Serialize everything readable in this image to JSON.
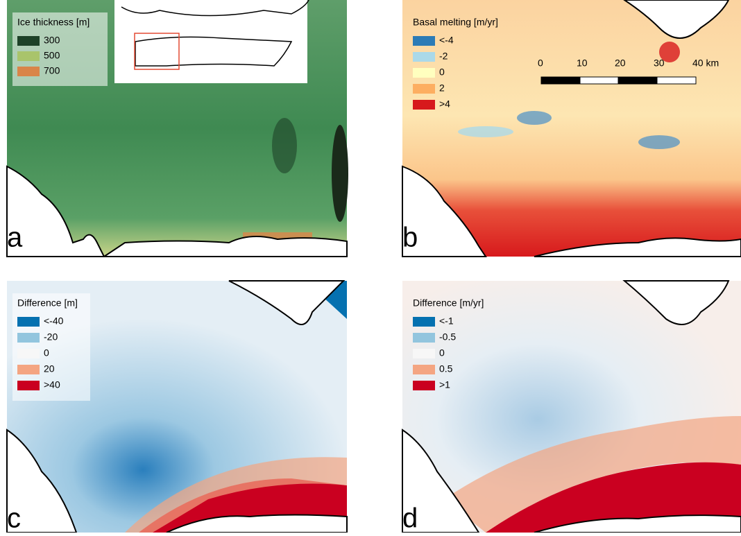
{
  "panels": [
    {
      "letter": "a",
      "legend": {
        "title": "Ice thickness [m]",
        "items": [
          {
            "label": "300",
            "color": "#1e4228"
          },
          {
            "label": "500",
            "color": "#a9c46b"
          },
          {
            "label": "700",
            "color": "#d98549"
          }
        ]
      }
    },
    {
      "letter": "b",
      "legend": {
        "title": "Basal melting [m/yr]",
        "items": [
          {
            "label": "<-4",
            "color": "#2c7bb6"
          },
          {
            "label": "-2",
            "color": "#abd9e9"
          },
          {
            "label": "0",
            "color": "#ffffbf"
          },
          {
            "label": "2",
            "color": "#fdae61"
          },
          {
            "label": ">4",
            "color": "#d7191c"
          }
        ]
      }
    },
    {
      "letter": "c",
      "legend": {
        "title": "Difference [m]",
        "items": [
          {
            "label": "<-40",
            "color": "#0571b0"
          },
          {
            "label": "-20",
            "color": "#92c5de"
          },
          {
            "label": "0",
            "color": "#f7f7f7"
          },
          {
            "label": "20",
            "color": "#f4a582"
          },
          {
            "label": ">40",
            "color": "#ca0020"
          }
        ]
      }
    },
    {
      "letter": "d",
      "legend": {
        "title": "Difference [m/yr]",
        "items": [
          {
            "label": "<-1",
            "color": "#0571b0"
          },
          {
            "label": "-0.5",
            "color": "#92c5de"
          },
          {
            "label": "0",
            "color": "#f7f7f7"
          },
          {
            "label": "0.5",
            "color": "#f4a582"
          },
          {
            "label": ">1",
            "color": "#ca0020"
          }
        ]
      }
    }
  ],
  "scale_bar": {
    "ticks": [
      "0",
      "10",
      "20",
      "30",
      "40 km"
    ]
  }
}
